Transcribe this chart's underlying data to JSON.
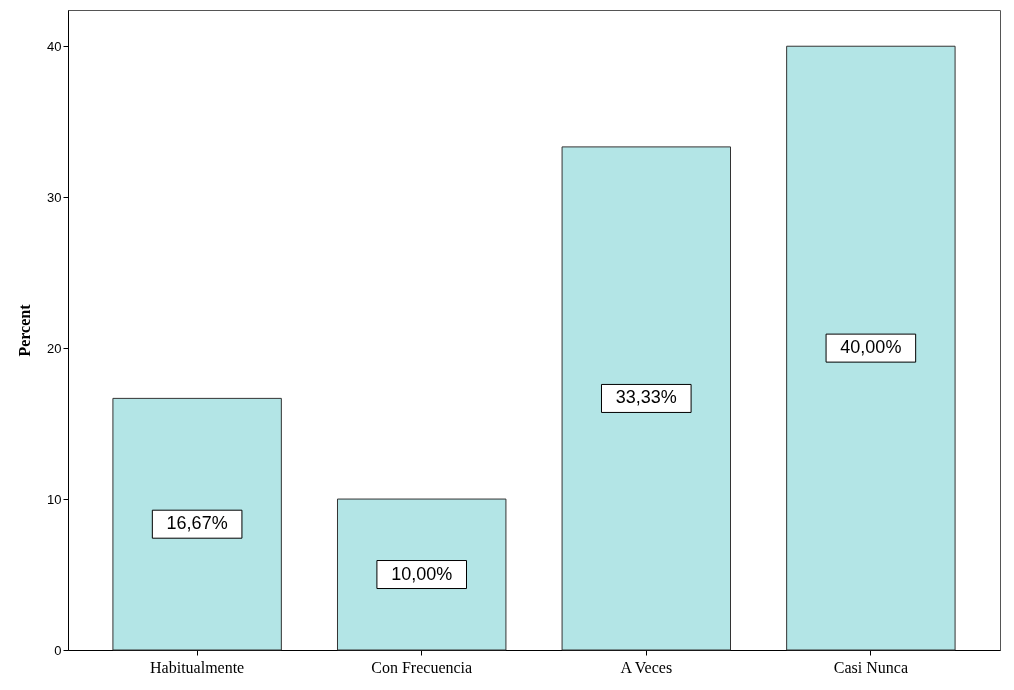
{
  "chart_data": {
    "type": "bar",
    "ylabel": "Percent",
    "categories": [
      "Habitualmente",
      "Con Frecuencia",
      "A Veces",
      "Casi Nunca"
    ],
    "values": [
      16.67,
      10.0,
      33.33,
      40.0
    ],
    "value_labels": [
      "16,67%",
      "10,00%",
      "33,33%",
      "40,00%"
    ],
    "color": "#b3e5e6",
    "ylim": [
      0,
      42.4
    ],
    "yticks": [
      0,
      10,
      20,
      30,
      40
    ],
    "grid": false
  }
}
